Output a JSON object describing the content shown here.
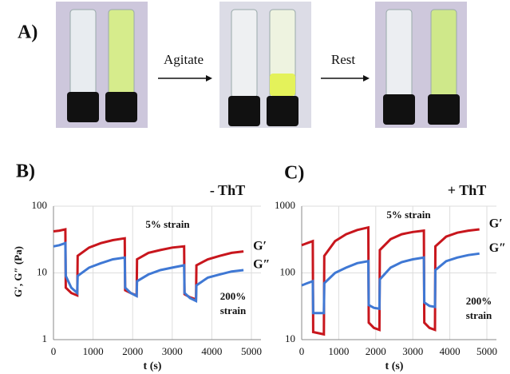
{
  "panel_a": {
    "label": "A)",
    "steps": [
      "Agitate",
      "Rest"
    ]
  },
  "chart_data": [
    {
      "type": "line",
      "panel": "B)",
      "title": "- ThT",
      "x_label": "t (s)",
      "y_label": "G′, G″ (Pa)",
      "annotations": [
        "5% strain",
        "200%",
        "strain"
      ],
      "log_scale": true,
      "grid": true,
      "xlim": [
        0,
        5000
      ],
      "xticks": [
        0,
        1000,
        2000,
        3000,
        4000,
        5000
      ],
      "ylim": [
        1,
        100
      ],
      "yticks": [
        1,
        10,
        100
      ],
      "x": [
        0,
        150,
        300,
        310,
        450,
        600,
        610,
        900,
        1200,
        1500,
        1800,
        1810,
        1950,
        2100,
        2110,
        2400,
        2700,
        3000,
        3300,
        3310,
        3450,
        3600,
        3610,
        3900,
        4200,
        4500,
        4800
      ],
      "series": [
        {
          "name": "G′",
          "color": "#c8161d",
          "values": [
            42,
            43,
            45,
            6,
            5,
            4.6,
            18,
            24,
            28,
            31,
            33,
            5.5,
            5,
            4.6,
            16,
            20,
            22,
            24,
            25,
            4.8,
            4.3,
            4,
            13,
            16,
            18,
            20,
            21
          ]
        },
        {
          "name": "G″",
          "color": "#3f78d4",
          "values": [
            25,
            26,
            28,
            9,
            6,
            5,
            9,
            12,
            14,
            16,
            17,
            6,
            5,
            4.5,
            7.5,
            9.5,
            11,
            12,
            13,
            5,
            4.2,
            3.8,
            6.5,
            8.5,
            9.5,
            10.5,
            11
          ]
        }
      ]
    },
    {
      "type": "line",
      "panel": "C)",
      "title": "+ ThT",
      "x_label": "t (s)",
      "annotations": [
        "5% strain",
        "200%",
        "strain"
      ],
      "log_scale": true,
      "grid": true,
      "xlim": [
        0,
        5000
      ],
      "xticks": [
        0,
        1000,
        2000,
        3000,
        4000,
        5000
      ],
      "ylim": [
        10,
        1000
      ],
      "yticks": [
        10,
        100,
        1000
      ],
      "x": [
        0,
        150,
        300,
        310,
        450,
        600,
        610,
        900,
        1200,
        1500,
        1800,
        1810,
        1950,
        2100,
        2110,
        2400,
        2700,
        3000,
        3300,
        3310,
        3450,
        3600,
        3610,
        3900,
        4200,
        4500,
        4800
      ],
      "series": [
        {
          "name": "G′",
          "color": "#c8161d",
          "values": [
            260,
            280,
            300,
            13,
            12.5,
            12,
            180,
            300,
            380,
            440,
            480,
            18,
            15,
            14,
            220,
            320,
            380,
            410,
            430,
            18,
            15,
            14,
            250,
            350,
            400,
            430,
            450
          ]
        },
        {
          "name": "G″",
          "color": "#3f78d4",
          "values": [
            65,
            70,
            75,
            25,
            25,
            25,
            70,
            100,
            120,
            140,
            150,
            33,
            30,
            29,
            80,
            120,
            145,
            160,
            170,
            36,
            32,
            31,
            110,
            150,
            170,
            185,
            195
          ]
        }
      ]
    }
  ]
}
